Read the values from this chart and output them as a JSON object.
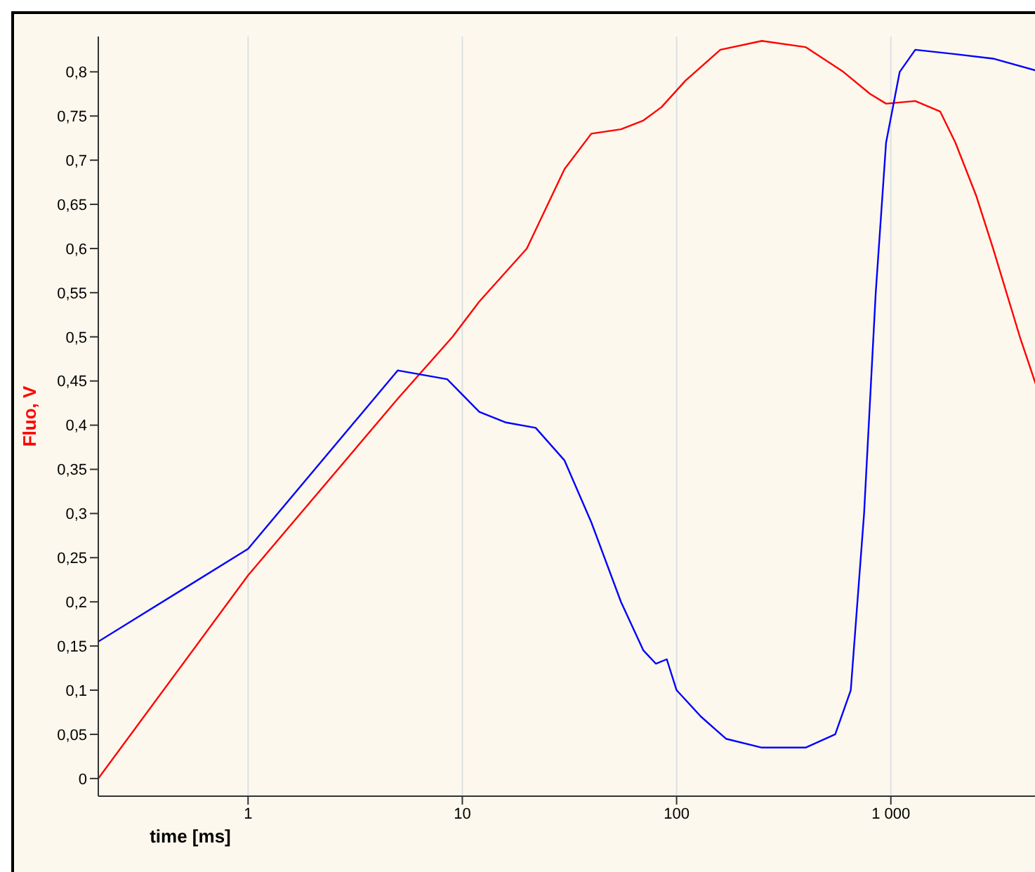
{
  "chart_data": {
    "type": "line",
    "xlabel": "time [ms]",
    "ylabel": "Fluo, V",
    "log": "x",
    "grid": "x",
    "marker": "none",
    "line_style": "solid",
    "xlim": [
      0.2,
      5000
    ],
    "ylim": [
      -0.02,
      0.84
    ],
    "xticks": [
      1,
      10,
      100,
      {
        "value": 1000,
        "label": "1 000"
      }
    ],
    "yticks": [
      0,
      {
        "value": 0.05,
        "label": "0,05"
      },
      {
        "value": 0.1,
        "label": "0,1"
      },
      {
        "value": 0.15,
        "label": "0,15"
      },
      {
        "value": 0.2,
        "label": "0,2"
      },
      {
        "value": 0.25,
        "label": "0,25"
      },
      {
        "value": 0.3,
        "label": "0,3"
      },
      {
        "value": 0.35,
        "label": "0,35"
      },
      {
        "value": 0.4,
        "label": "0,4"
      },
      {
        "value": 0.45,
        "label": "0,45"
      },
      {
        "value": 0.5,
        "label": "0,5"
      },
      {
        "value": 0.55,
        "label": "0,55"
      },
      {
        "value": 0.6,
        "label": "0,6"
      },
      {
        "value": 0.65,
        "label": "0,65"
      },
      {
        "value": 0.7,
        "label": "0,7"
      },
      {
        "value": 0.75,
        "label": "0,75"
      },
      {
        "value": 0.8,
        "label": "0,8"
      }
    ],
    "series": [
      {
        "color": "#ff0000",
        "x": [
          0.2,
          1,
          5,
          9,
          12,
          20,
          30,
          40,
          55,
          70,
          85,
          110,
          160,
          250,
          400,
          600,
          800,
          950,
          1300,
          1700,
          2000,
          2500,
          3000,
          4000,
          5000
        ],
        "values": [
          0,
          0.23,
          0.43,
          0.5,
          0.54,
          0.6,
          0.69,
          0.73,
          0.735,
          0.745,
          0.76,
          0.79,
          0.825,
          0.835,
          0.828,
          0.8,
          0.775,
          0.764,
          0.767,
          0.755,
          0.72,
          0.66,
          0.6,
          0.5,
          0.43
        ]
      },
      {
        "color": "#0000ff",
        "x": [
          0.2,
          1,
          5,
          8.5,
          12,
          16,
          22,
          30,
          40,
          55,
          70,
          80,
          90,
          100,
          130,
          170,
          250,
          400,
          550,
          650,
          750,
          850,
          950,
          1100,
          1300,
          2000,
          3000,
          5000
        ],
        "values": [
          0.155,
          0.26,
          0.462,
          0.452,
          0.415,
          0.403,
          0.397,
          0.36,
          0.29,
          0.2,
          0.145,
          0.13,
          0.135,
          0.1,
          0.07,
          0.045,
          0.035,
          0.035,
          0.05,
          0.1,
          0.3,
          0.55,
          0.72,
          0.8,
          0.825,
          0.82,
          0.815,
          0.8
        ]
      }
    ]
  }
}
